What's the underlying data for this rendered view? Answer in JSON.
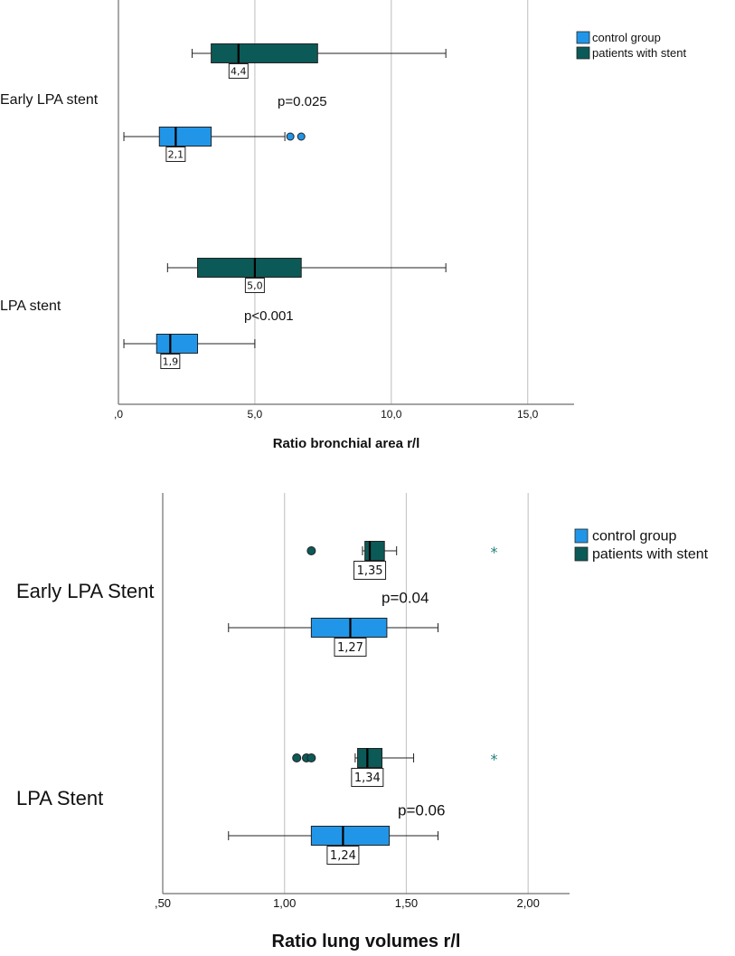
{
  "colors": {
    "control": "#2196e8",
    "stent": "#0b5a58",
    "star": "#1f7f7a",
    "grid": "#c8c8c8",
    "axis": "#6e6e6e"
  },
  "chart_data": [
    {
      "type": "boxplot",
      "orientation": "horizontal",
      "xlabel": "Ratio bronchial area r/l",
      "xlim": [
        0,
        16.7
      ],
      "xticks": [
        0,
        5,
        10,
        15
      ],
      "xtick_labels": [
        ",0",
        "5,0",
        "10,0",
        "15,0"
      ],
      "legend": {
        "position": "top-right",
        "entries": [
          {
            "key": "control",
            "label": "control group"
          },
          {
            "key": "stent",
            "label": "patients with stent"
          }
        ]
      },
      "groups": [
        {
          "label": "Early LPA stent",
          "pvalue": "p=0.025",
          "boxes": [
            {
              "series": "stent",
              "whisker_low": 2.7,
              "q1": 3.4,
              "median": 4.4,
              "q3": 7.3,
              "whisker_high": 12.0,
              "median_label": "4,4",
              "outliers": [],
              "extremes": []
            },
            {
              "series": "control",
              "whisker_low": 0.2,
              "q1": 1.5,
              "median": 2.1,
              "q3": 3.4,
              "whisker_high": 6.1,
              "median_label": "2,1",
              "outliers": [
                6.3,
                6.7
              ],
              "extremes": []
            }
          ]
        },
        {
          "label": "LPA stent",
          "pvalue": "p<0.001",
          "boxes": [
            {
              "series": "stent",
              "whisker_low": 1.8,
              "q1": 2.9,
              "median": 5.0,
              "q3": 6.7,
              "whisker_high": 12.0,
              "median_label": "5,0",
              "outliers": [],
              "extremes": []
            },
            {
              "series": "control",
              "whisker_low": 0.2,
              "q1": 1.4,
              "median": 1.9,
              "q3": 2.9,
              "whisker_high": 5.0,
              "median_label": "1,9",
              "outliers": [],
              "extremes": []
            }
          ]
        }
      ]
    },
    {
      "type": "boxplot",
      "orientation": "horizontal",
      "xlabel": "Ratio lung volumes r/l",
      "xlim": [
        0.5,
        2.17
      ],
      "xticks": [
        0.5,
        1.0,
        1.5,
        2.0
      ],
      "xtick_labels": [
        ",50",
        "1,00",
        "1,50",
        "2,00"
      ],
      "legend": {
        "position": "top-right",
        "entries": [
          {
            "key": "control",
            "label": "control group"
          },
          {
            "key": "stent",
            "label": "patients with stent"
          }
        ]
      },
      "groups": [
        {
          "label": "Early LPA Stent",
          "pvalue": "p=0.04",
          "boxes": [
            {
              "series": "stent",
              "whisker_low": 1.32,
              "q1": 1.33,
              "median": 1.35,
              "q3": 1.41,
              "whisker_high": 1.46,
              "median_label": "1,35",
              "outliers": [
                1.11
              ],
              "extremes": [
                1.86
              ]
            },
            {
              "series": "control",
              "whisker_low": 0.77,
              "q1": 1.11,
              "median": 1.27,
              "q3": 1.42,
              "whisker_high": 1.63,
              "median_label": "1,27",
              "outliers": [],
              "extremes": []
            }
          ]
        },
        {
          "label": "LPA Stent",
          "pvalue": "p=0.06",
          "boxes": [
            {
              "series": "stent",
              "whisker_low": 1.29,
              "q1": 1.3,
              "median": 1.34,
              "q3": 1.4,
              "whisker_high": 1.53,
              "median_label": "1,34",
              "outliers": [
                1.05,
                1.09,
                1.11
              ],
              "extremes": [
                1.86
              ]
            },
            {
              "series": "control",
              "whisker_low": 0.77,
              "q1": 1.11,
              "median": 1.24,
              "q3": 1.43,
              "whisker_high": 1.63,
              "median_label": "1,24",
              "outliers": [],
              "extremes": []
            }
          ]
        }
      ]
    }
  ]
}
